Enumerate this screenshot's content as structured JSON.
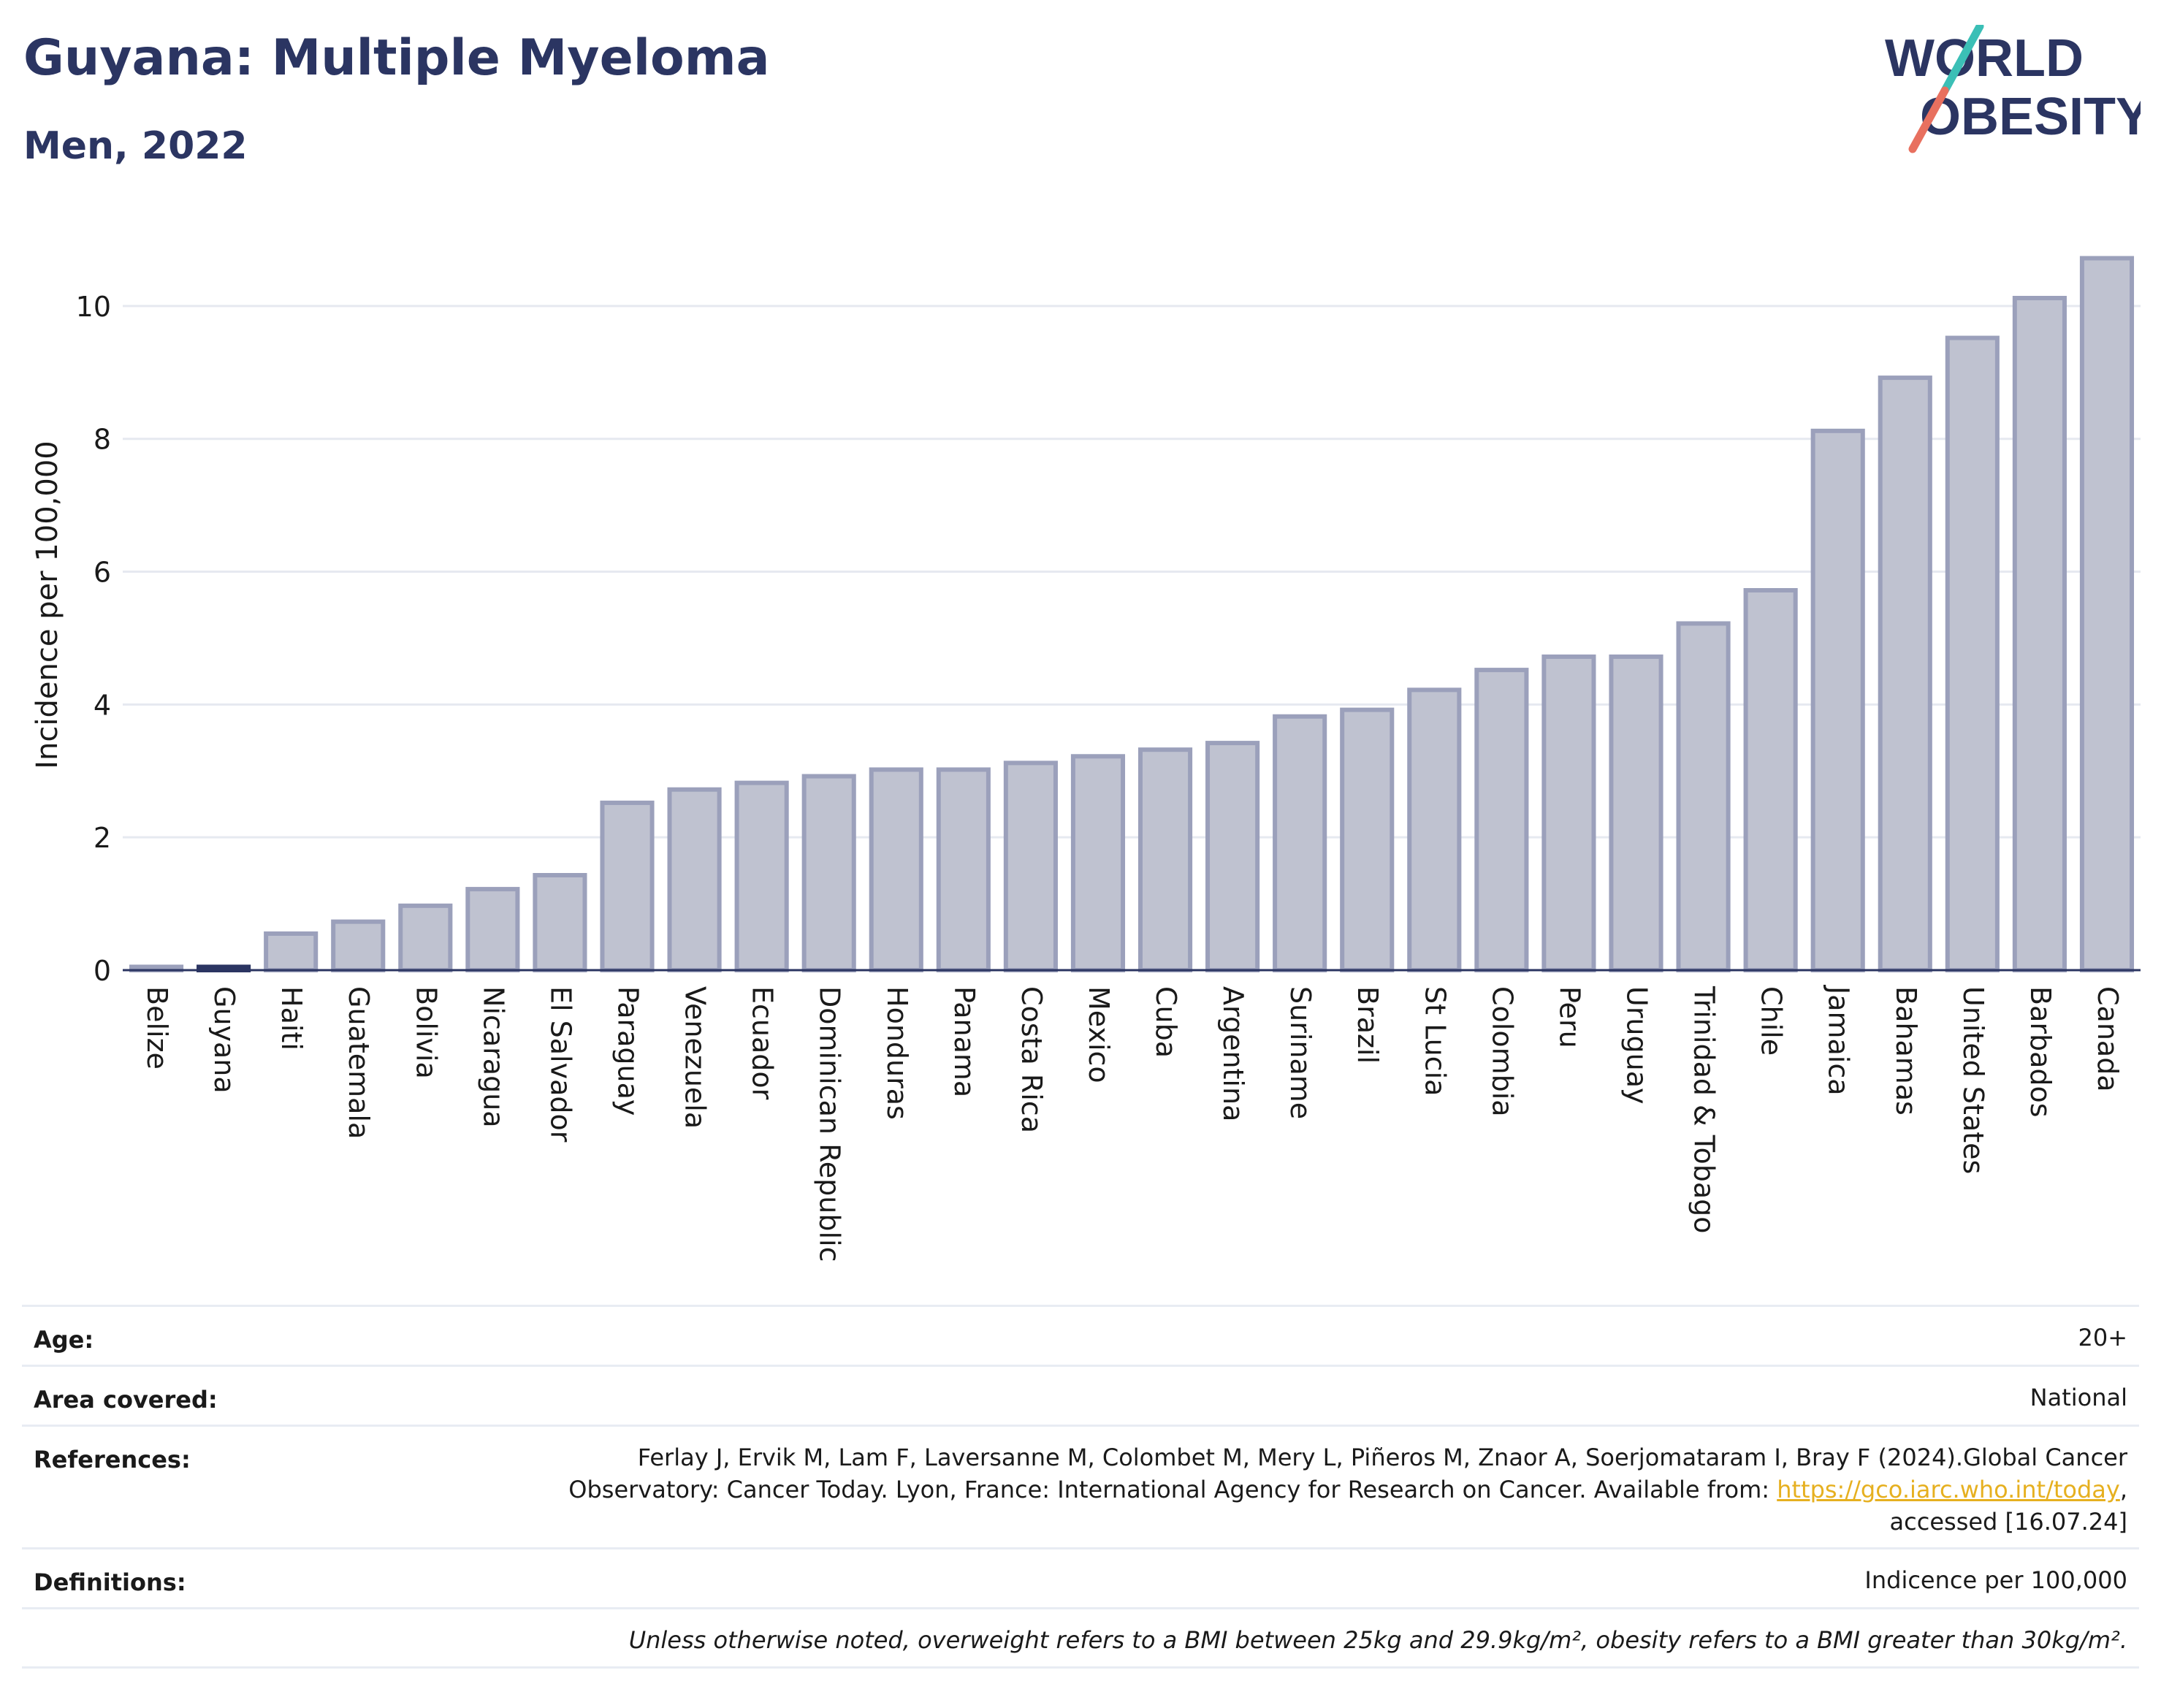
{
  "header": {
    "title": "Guyana: Multiple Myeloma",
    "subtitle": "Men, 2022"
  },
  "logo": {
    "line1": "WORLD",
    "line2": "OBESITY",
    "slash_colors": [
      "#3bbfb6",
      "#e8705f"
    ]
  },
  "colors": {
    "bar_fill": "#bfc2d0",
    "bar_stroke": "#9ba0bb",
    "highlight": "#2b3562",
    "title": "#2b3562",
    "link": "#e6b020"
  },
  "chart_data": {
    "type": "bar",
    "ylabel": "Incidence per 100,000",
    "xlabel": "",
    "ylim": [
      0,
      11
    ],
    "yticks": [
      0,
      2,
      4,
      6,
      8,
      10
    ],
    "grid": true,
    "highlight": "Guyana",
    "categories": [
      "Belize",
      "Guyana",
      "Haiti",
      "Guatemala",
      "Bolivia",
      "Nicaragua",
      "El Salvador",
      "Paraguay",
      "Venezuela",
      "Ecuador",
      "Dominican Republic",
      "Honduras",
      "Panama",
      "Costa Rica",
      "Mexico",
      "Cuba",
      "Argentina",
      "Suriname",
      "Brazil",
      "St Lucia",
      "Colombia",
      "Peru",
      "Uruguay",
      "Trinidad & Tobago",
      "Chile",
      "Jamaica",
      "Bahamas",
      "United States",
      "Barbados",
      "Canada"
    ],
    "values": [
      0.05,
      0.05,
      0.55,
      0.73,
      0.97,
      1.22,
      1.43,
      2.52,
      2.72,
      2.82,
      2.92,
      3.02,
      3.02,
      3.12,
      3.22,
      3.32,
      3.42,
      3.82,
      3.92,
      4.22,
      4.52,
      4.72,
      4.72,
      5.22,
      5.72,
      8.12,
      8.92,
      9.52,
      10.12,
      10.72
    ]
  },
  "meta": {
    "age_label": "Age:",
    "age_value": "20+",
    "area_label": "Area covered:",
    "area_value": "National",
    "references_label": "References:",
    "references_line1": "Ferlay J, Ervik M, Lam F, Laversanne M, Colombet M, Mery L, Piñeros M, Znaor A, Soerjomataram I, Bray F (2024).Global Cancer",
    "references_line2": "Observatory: Cancer Today. Lyon, France: International Agency for Research on Cancer. Available from: ",
    "references_link": "https://gco.iarc.who.int/today",
    "references_line2_end": ",",
    "references_line3": "accessed [16.07.24]",
    "definitions_label": "Definitions:",
    "definitions_value": "Indicence per 100,000",
    "note": "Unless otherwise noted, overweight refers to a BMI between 25kg and 29.9kg/m², obesity refers to a BMI greater than 30kg/m²."
  }
}
